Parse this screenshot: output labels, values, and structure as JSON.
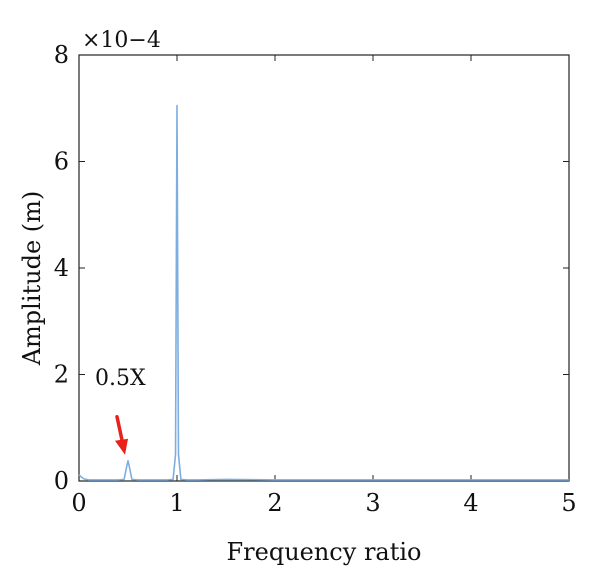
{
  "chart_data": {
    "type": "line",
    "title": "",
    "xlabel": "Frequency ratio",
    "ylabel": "Amplitude (m)",
    "y_exponent_label": "×10−4",
    "xlim": [
      0,
      5
    ],
    "ylim": [
      0,
      8
    ],
    "y_units_scale": "1e-4",
    "xticks": [
      "0",
      "1",
      "2",
      "3",
      "4",
      "5"
    ],
    "yticks": [
      "0",
      "2",
      "4",
      "6",
      "8"
    ],
    "grid": false,
    "legend": "none",
    "colors": {
      "series": "#7eaee0",
      "annotation_arrow": "#e8221b"
    },
    "series": [
      {
        "x": [
          0,
          0.02,
          0.05,
          0.1,
          0.2,
          0.3,
          0.4,
          0.46,
          0.49,
          0.5,
          0.51,
          0.54,
          0.6,
          0.7,
          0.8,
          0.9,
          0.96,
          0.985,
          1.0,
          1.015,
          1.04,
          1.1,
          1.2,
          1.5,
          2.0,
          2.5,
          3.0,
          3.5,
          4.0,
          4.5,
          5.0
        ],
        "values": [
          0.12,
          0.08,
          0.04,
          0.02,
          0.02,
          0.02,
          0.02,
          0.03,
          0.3,
          0.38,
          0.3,
          0.03,
          0.02,
          0.02,
          0.02,
          0.02,
          0.03,
          0.5,
          7.05,
          0.5,
          0.03,
          0.02,
          0.02,
          0.03,
          0.02,
          0.02,
          0.02,
          0.02,
          0.02,
          0.02,
          0.02
        ]
      }
    ],
    "annotations": [
      {
        "text": "0.5X",
        "x": 0.5,
        "y": 0.38
      }
    ]
  }
}
